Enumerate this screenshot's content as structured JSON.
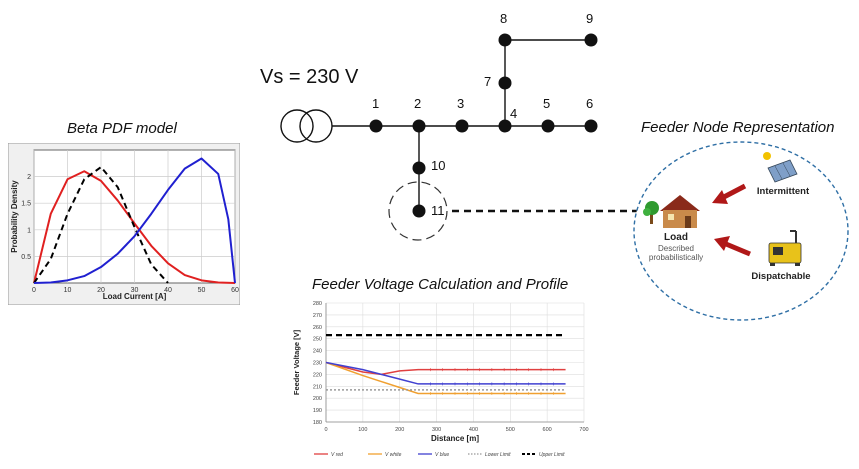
{
  "captions": {
    "beta_title": "Beta PDF model",
    "node_title": "Feeder Node Representation",
    "profile_title": "Feeder Voltage Calculation and Profile"
  },
  "feeder": {
    "source_label": "Vs = 230 V",
    "nodes": [
      "1",
      "2",
      "3",
      "4",
      "5",
      "6",
      "7",
      "8",
      "9",
      "10",
      "11"
    ]
  },
  "node_rep": {
    "load_label": "Load",
    "load_desc_1": "Described",
    "load_desc_2": "probabilistically",
    "intermittent_label": "Intermittent",
    "dispatchable_label": "Dispatchable"
  },
  "chart_data": [
    {
      "type": "line",
      "xlabel": "Load Current [A]",
      "ylabel": "Probability Density",
      "xlim": [
        0,
        60
      ],
      "ylim": [
        0,
        2.5
      ],
      "xticks": [
        0,
        10,
        20,
        30,
        40,
        50,
        60
      ],
      "yticks": [
        0.5,
        1,
        1.5,
        2
      ],
      "grid": true,
      "series": [
        {
          "color": "#e02020",
          "style": "solid",
          "x": [
            0,
            5,
            10,
            15,
            20,
            25,
            30,
            35,
            40,
            45,
            50,
            55,
            60
          ],
          "y": [
            0,
            1.3,
            1.95,
            2.1,
            1.92,
            1.55,
            1.12,
            0.7,
            0.37,
            0.15,
            0.05,
            0.01,
            0
          ]
        },
        {
          "color": "#000000",
          "style": "dashed",
          "x": [
            0,
            5,
            10,
            15,
            20,
            25,
            30,
            35,
            40
          ],
          "y": [
            0,
            0.45,
            1.3,
            1.95,
            2.18,
            1.8,
            1.05,
            0.35,
            0
          ]
        },
        {
          "color": "#2020d0",
          "style": "solid",
          "x": [
            0,
            5,
            10,
            15,
            20,
            25,
            30,
            35,
            40,
            45,
            50,
            55,
            58,
            60
          ],
          "y": [
            0,
            0.01,
            0.05,
            0.13,
            0.3,
            0.55,
            0.88,
            1.3,
            1.75,
            2.15,
            2.34,
            2.05,
            1.2,
            0
          ]
        }
      ]
    },
    {
      "type": "line",
      "xlabel": "Distance [m]",
      "ylabel": "Feeder Voltage [V]",
      "xlim": [
        0,
        700
      ],
      "ylim": [
        180,
        280
      ],
      "xticks": [
        0,
        100,
        200,
        300,
        400,
        500,
        600,
        700
      ],
      "yticks": [
        180,
        190,
        200,
        210,
        220,
        230,
        240,
        250,
        260,
        270,
        280
      ],
      "grid": true,
      "legend": "bottom",
      "series": [
        {
          "name": "V red",
          "color": "#e04040",
          "style": "solid",
          "x": [
            0,
            100,
            150,
            200,
            250,
            650
          ],
          "y": [
            230,
            222,
            220,
            223,
            224,
            224
          ]
        },
        {
          "name": "V white",
          "color": "#f0a030",
          "style": "solid",
          "x": [
            0,
            100,
            150,
            200,
            250,
            650
          ],
          "y": [
            230,
            219,
            214,
            209,
            204,
            204
          ]
        },
        {
          "name": "V blue",
          "color": "#4040d0",
          "style": "solid",
          "x": [
            0,
            100,
            150,
            200,
            250,
            650
          ],
          "y": [
            230,
            224,
            220,
            216,
            212,
            212
          ]
        },
        {
          "name": "Lower Limit",
          "color": "#999999",
          "style": "dotted",
          "x": [
            0,
            650
          ],
          "y": [
            207,
            207
          ]
        },
        {
          "name": "Upper Limit",
          "color": "#000000",
          "style": "dashed",
          "x": [
            0,
            650
          ],
          "y": [
            253,
            253
          ]
        }
      ]
    }
  ]
}
